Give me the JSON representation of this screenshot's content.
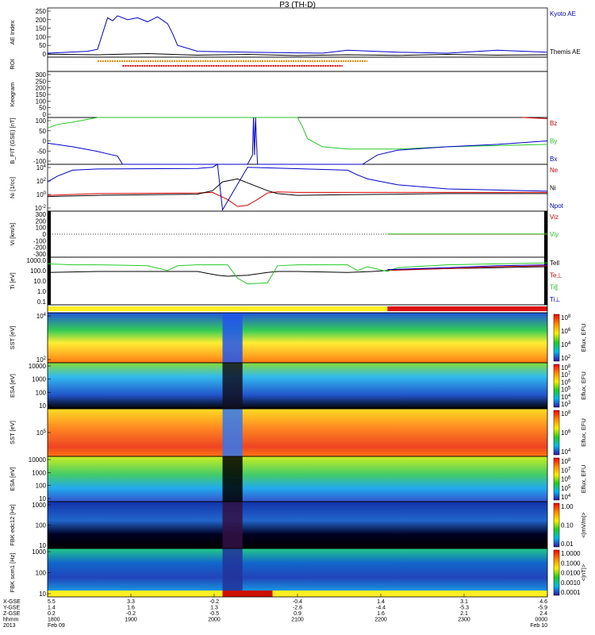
{
  "title": "P3 (TH-D)",
  "colors": {
    "blue": "#0000cc",
    "red": "#dd0000",
    "green": "#22cc22",
    "black": "#000000",
    "orange": "#ff8800",
    "yellow": "#ffee22"
  },
  "chart_data": [
    {
      "type": "line",
      "panel": "ae",
      "ylabel": "AE Index",
      "ylim": [
        0,
        250
      ],
      "yticks": [
        "250",
        "200",
        "150",
        "100",
        "50",
        "0"
      ],
      "series": [
        {
          "name": "Kyoto AE",
          "color": "#0000cc",
          "x": [
            0,
            0.08,
            0.1,
            0.115,
            0.12,
            0.13,
            0.14,
            0.16,
            0.18,
            0.2,
            0.22,
            0.24,
            0.25,
            0.26,
            0.3,
            0.4,
            0.55,
            0.6,
            0.7,
            0.8,
            0.9,
            1.0
          ],
          "y": [
            20,
            30,
            40,
            160,
            200,
            185,
            210,
            190,
            200,
            180,
            205,
            170,
            120,
            60,
            30,
            25,
            20,
            35,
            25,
            20,
            35,
            25
          ]
        },
        {
          "name": "Themis AE",
          "color": "#000000",
          "x": [
            0,
            0.1,
            0.2,
            0.3,
            0.4,
            0.5,
            0.6,
            0.7,
            0.8,
            0.9,
            1.0
          ],
          "y": [
            15,
            12,
            18,
            10,
            14,
            8,
            12,
            9,
            14,
            10,
            12
          ]
        }
      ]
    },
    {
      "type": "line",
      "panel": "roi",
      "ylabel": "ROI",
      "series": [
        {
          "name": "",
          "color": "#ff8800",
          "x": [
            0.1,
            0.64
          ],
          "y": [
            1,
            1
          ]
        },
        {
          "name": "",
          "color": "#dd0000",
          "x": [
            0.15,
            0.59
          ],
          "y": [
            0,
            0
          ]
        }
      ]
    },
    {
      "type": "line",
      "panel": "keogram",
      "ylabel": "Keogram",
      "ylim": [
        0,
        300
      ],
      "yticks": [
        "300",
        "250",
        "200",
        "150",
        "100",
        "50",
        "0"
      ]
    },
    {
      "type": "line",
      "panel": "bfit",
      "ylabel": "B_FIT (GSE) [nT]",
      "ylim": [
        -100,
        100
      ],
      "yticks": [
        "100",
        "50",
        "0",
        "-50",
        "-100"
      ],
      "series": [
        {
          "name": "Bz",
          "color": "#dd0000",
          "x": [
            0.95,
            1.0
          ],
          "y": [
            100,
            95
          ]
        },
        {
          "name": "By",
          "color": "#22cc22",
          "x": [
            0,
            0.02,
            0.05,
            0.1,
            0.5,
            0.51,
            0.52,
            0.55,
            0.6,
            0.7,
            0.8,
            0.9,
            1.0
          ],
          "y": [
            55,
            70,
            80,
            100,
            100,
            60,
            10,
            -25,
            -35,
            -35,
            -25,
            -20,
            -15
          ]
        },
        {
          "name": "Bx",
          "color": "#0000cc",
          "x": [
            0,
            0.05,
            0.1,
            0.14,
            0.15,
            0.4,
            0.41,
            0.412,
            0.414,
            0.416,
            0.42,
            0.43,
            0.63,
            0.66,
            0.7,
            0.8,
            0.9,
            1.0
          ],
          "y": [
            -10,
            -25,
            -45,
            -65,
            -100,
            -100,
            -60,
            100,
            -60,
            100,
            -100,
            -100,
            -100,
            -60,
            -40,
            -25,
            -15,
            0
          ]
        }
      ]
    },
    {
      "type": "line",
      "panel": "density",
      "ylabel": "Ni [1/cc]",
      "ylim": [
        -3,
        5
      ],
      "yticks": [
        "10^4",
        "10^2",
        "10^0",
        "10^-2"
      ],
      "series": [
        {
          "name": "Ne",
          "color": "#dd0000",
          "x": [
            0,
            0.1,
            0.3,
            0.33,
            0.36,
            0.38,
            0.4,
            0.42,
            0.44,
            0.46,
            0.5,
            0.7,
            0.8,
            1.0
          ],
          "y": [
            -0.3,
            0,
            0.1,
            0.2,
            -1,
            -2.2,
            -2,
            -1,
            0.1,
            0.3,
            0.2,
            0.2,
            0.2,
            0.2
          ]
        },
        {
          "name": "Ni",
          "color": "#000000",
          "x": [
            0,
            0.1,
            0.3,
            0.33,
            0.35,
            0.38,
            0.41,
            0.44,
            0.46,
            0.5,
            0.6,
            0.7,
            0.8,
            1.0
          ],
          "y": [
            -0.5,
            -0.3,
            -0.1,
            0.5,
            2,
            2.5,
            1.5,
            0.5,
            0,
            -0.3,
            -0.2,
            -0.1,
            0,
            0
          ]
        },
        {
          "name": "Npot",
          "color": "#0000cc",
          "x": [
            0,
            0.02,
            0.05,
            0.1,
            0.3,
            0.33,
            0.34,
            0.35,
            0.4,
            0.6,
            0.62,
            0.64,
            0.7,
            0.8,
            0.9,
            1.0
          ],
          "y": [
            2,
            3,
            4,
            4.2,
            4.3,
            4.5,
            5,
            -2.8,
            4.5,
            4.0,
            3.2,
            2.5,
            1.5,
            0.8,
            0.6,
            0.4
          ]
        }
      ]
    },
    {
      "type": "line",
      "panel": "velocity",
      "ylabel": "Vi [km/s]",
      "ylim": [
        -300,
        300
      ],
      "yticks": [
        "300",
        "200",
        "100",
        "0",
        "-100",
        "-200",
        "-300"
      ],
      "series": [
        {
          "name": "Viz",
          "color": "#dd0000",
          "x": [
            0.68,
            1.0
          ],
          "y": [
            0,
            0
          ]
        },
        {
          "name": "Viy",
          "color": "#22cc22",
          "x": [
            0.68,
            1.0
          ],
          "y": [
            2,
            2
          ]
        },
        {
          "name": "Vix",
          "color": "#0000cc",
          "x": [],
          "y": []
        }
      ]
    },
    {
      "type": "line",
      "panel": "temperature",
      "ylabel": "Ti [eV]",
      "ylim": [
        -1,
        4
      ],
      "yticks": [
        "1000.0",
        "100.0",
        "10.0",
        "1.0",
        "0.1"
      ],
      "series": [
        {
          "name": "Tell",
          "color": "#000000",
          "x": [
            0,
            0.1,
            0.2,
            0.3,
            0.34,
            0.36,
            0.4,
            0.44,
            0.46,
            0.5,
            0.6,
            0.65,
            0.68,
            0.7,
            0.8,
            0.9,
            1.0
          ],
          "y": [
            2.4,
            2.5,
            2.5,
            2.5,
            2.1,
            2.0,
            2.1,
            2.4,
            2.5,
            2.5,
            2.4,
            2.5,
            2.6,
            2.7,
            2.8,
            2.9,
            3.0
          ]
        },
        {
          "name": "Te⊥",
          "color": "#dd0000",
          "x": [
            0.68,
            0.8,
            0.9,
            1.0
          ],
          "y": [
            2.6,
            2.8,
            3.0,
            3.1
          ]
        },
        {
          "name": "Ti∥",
          "color": "#22cc22",
          "x": [
            0,
            0.05,
            0.1,
            0.2,
            0.24,
            0.26,
            0.3,
            0.36,
            0.38,
            0.4,
            0.44,
            0.46,
            0.5,
            0.6,
            0.62,
            0.64,
            0.68,
            0.7,
            0.8,
            0.9,
            1.0
          ],
          "y": [
            3.3,
            3.2,
            3.2,
            3.1,
            2.6,
            3.1,
            3.2,
            3.2,
            1.8,
            1.2,
            1.3,
            3.1,
            3.2,
            3.2,
            2.6,
            3.0,
            2.5,
            2.9,
            3.2,
            3.3,
            3.4
          ]
        },
        {
          "name": "Ti⊥",
          "color": "#0000cc",
          "x": [
            0.68,
            0.8,
            0.9,
            1.0
          ],
          "y": [
            2.7,
            2.9,
            3.1,
            3.2
          ]
        }
      ]
    },
    {
      "type": "heatmap",
      "panel": "sst-electron",
      "ylabel": "SST [eV]",
      "yticks": [
        "10^4",
        "10^2"
      ],
      "colorbar_label": "Eflux, EFU",
      "colorbar_ticks": [
        "10^8",
        "10^6",
        "10^4",
        "10^2"
      ]
    },
    {
      "type": "heatmap",
      "panel": "esa-electron",
      "ylabel": "ESA [eV]",
      "yticks": [
        "10000",
        "1000",
        "100",
        "10"
      ],
      "colorbar_label": "Eflux, EFU",
      "colorbar_ticks": [
        "10^8",
        "10^7",
        "10^6",
        "10^5",
        "10^4",
        "10^3"
      ]
    },
    {
      "type": "heatmap",
      "panel": "sst-ion",
      "ylabel": "SST [eV]",
      "yticks": [
        "10^5"
      ],
      "colorbar_label": "Eflux, EFU",
      "colorbar_ticks": [
        "10^8",
        "10^6",
        "10^4"
      ]
    },
    {
      "type": "heatmap",
      "panel": "esa-ion",
      "ylabel": "ESA [eV]",
      "yticks": [
        "10000",
        "1000",
        "100",
        "10"
      ],
      "colorbar_label": "Eflux, EFU",
      "colorbar_ticks": [
        "10^8",
        "10^7",
        "10^6",
        "10^5",
        "10^4"
      ]
    },
    {
      "type": "heatmap",
      "panel": "fbk-edc12",
      "ylabel": "FBK edc12 [Hz]",
      "yticks": [
        "1000",
        "100",
        "10"
      ],
      "colorbar_label": "<|mV/m|>",
      "colorbar_ticks": [
        "1.00",
        "0.10",
        "0.01"
      ]
    },
    {
      "type": "heatmap",
      "panel": "fbk-scm1",
      "ylabel": "FBK scm1 [Hz]",
      "yticks": [
        "1000",
        "100",
        "10"
      ],
      "colorbar_label": "<|nT|>",
      "colorbar_ticks": [
        "1.0000",
        "0.1000",
        "0.0100",
        "0.0010",
        "0.0001"
      ]
    }
  ],
  "axis": {
    "row_labels": [
      "X-GSE",
      "Y-GSE",
      "Z-GSE",
      "hhmm",
      "2013"
    ],
    "ticks": [
      {
        "label": "1800",
        "x": 0,
        "vals": [
          "5.5",
          "1.4",
          "0.2",
          "1800",
          "Feb 09"
        ]
      },
      {
        "label": "1900",
        "x": 0.1667,
        "vals": [
          "3.3",
          "1.6",
          "-0.2",
          "1900",
          ""
        ]
      },
      {
        "label": "2000",
        "x": 0.3333,
        "vals": [
          "-0.2",
          "1.3",
          "-0.5",
          "2000",
          ""
        ]
      },
      {
        "label": "2100",
        "x": 0.5,
        "vals": [
          "-0.4",
          "-2.6",
          "0.9",
          "2100",
          ""
        ]
      },
      {
        "label": "2200",
        "x": 0.6667,
        "vals": [
          "1.4",
          "-4.4",
          "1.6",
          "2200",
          ""
        ]
      },
      {
        "label": "2300",
        "x": 0.8333,
        "vals": [
          "3.1",
          "-5.3",
          "2.1",
          "2300",
          ""
        ]
      },
      {
        "label": "0000",
        "x": 1.0,
        "vals": [
          "4.6",
          "-5.9",
          "2.4",
          "0000",
          "Feb 10"
        ]
      }
    ]
  }
}
